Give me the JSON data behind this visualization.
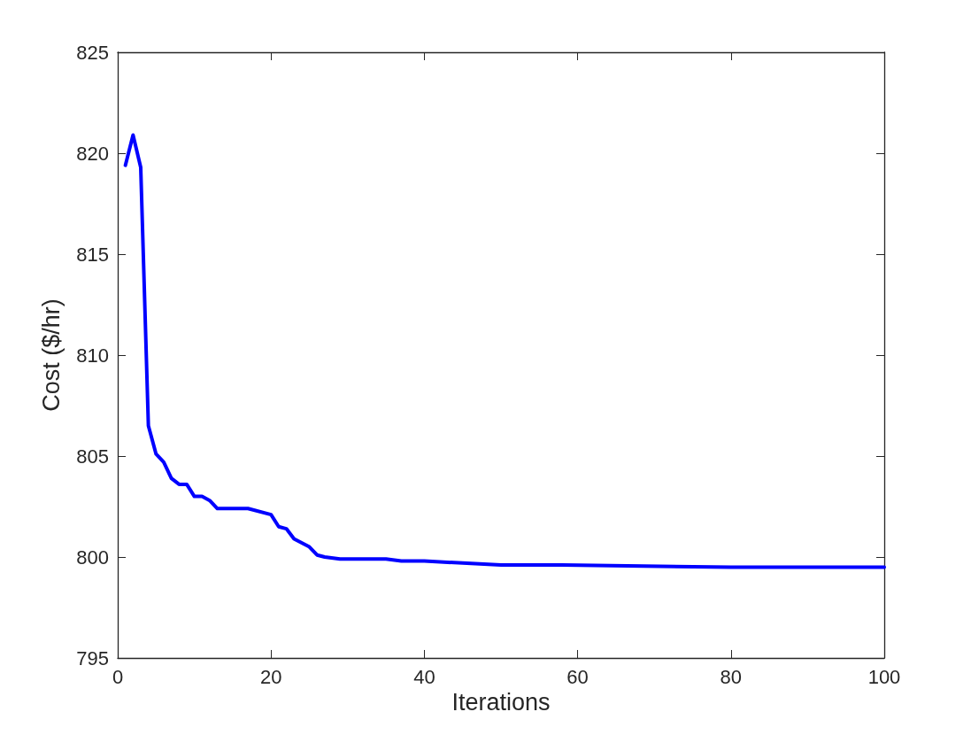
{
  "chart_data": {
    "type": "line",
    "xlabel": "Iterations",
    "ylabel": "Cost ($/hr)",
    "series": [
      {
        "color": "#0000ff",
        "x": [
          1,
          2,
          3,
          4,
          5,
          6,
          7,
          8,
          9,
          10,
          11,
          12,
          13,
          17,
          20,
          21,
          22,
          23,
          25,
          26,
          27,
          29,
          35,
          37,
          40,
          45,
          50,
          58,
          80,
          100
        ],
        "values": [
          819.4,
          820.9,
          819.3,
          806.5,
          805.1,
          804.7,
          803.9,
          803.6,
          803.6,
          803.0,
          803.0,
          802.8,
          802.4,
          802.4,
          802.1,
          801.5,
          801.4,
          800.9,
          800.5,
          800.1,
          800.0,
          799.9,
          799.9,
          799.8,
          799.8,
          799.7,
          799.6,
          799.6,
          799.5,
          799.5
        ]
      }
    ],
    "xlim": [
      0,
      100
    ],
    "xticks": [
      0,
      20,
      40,
      60,
      80,
      100
    ],
    "ylim": [
      795,
      825
    ],
    "yticks": [
      795,
      800,
      805,
      810,
      815,
      820,
      825
    ],
    "grid": false,
    "marker": "none",
    "line_style": "solid"
  }
}
